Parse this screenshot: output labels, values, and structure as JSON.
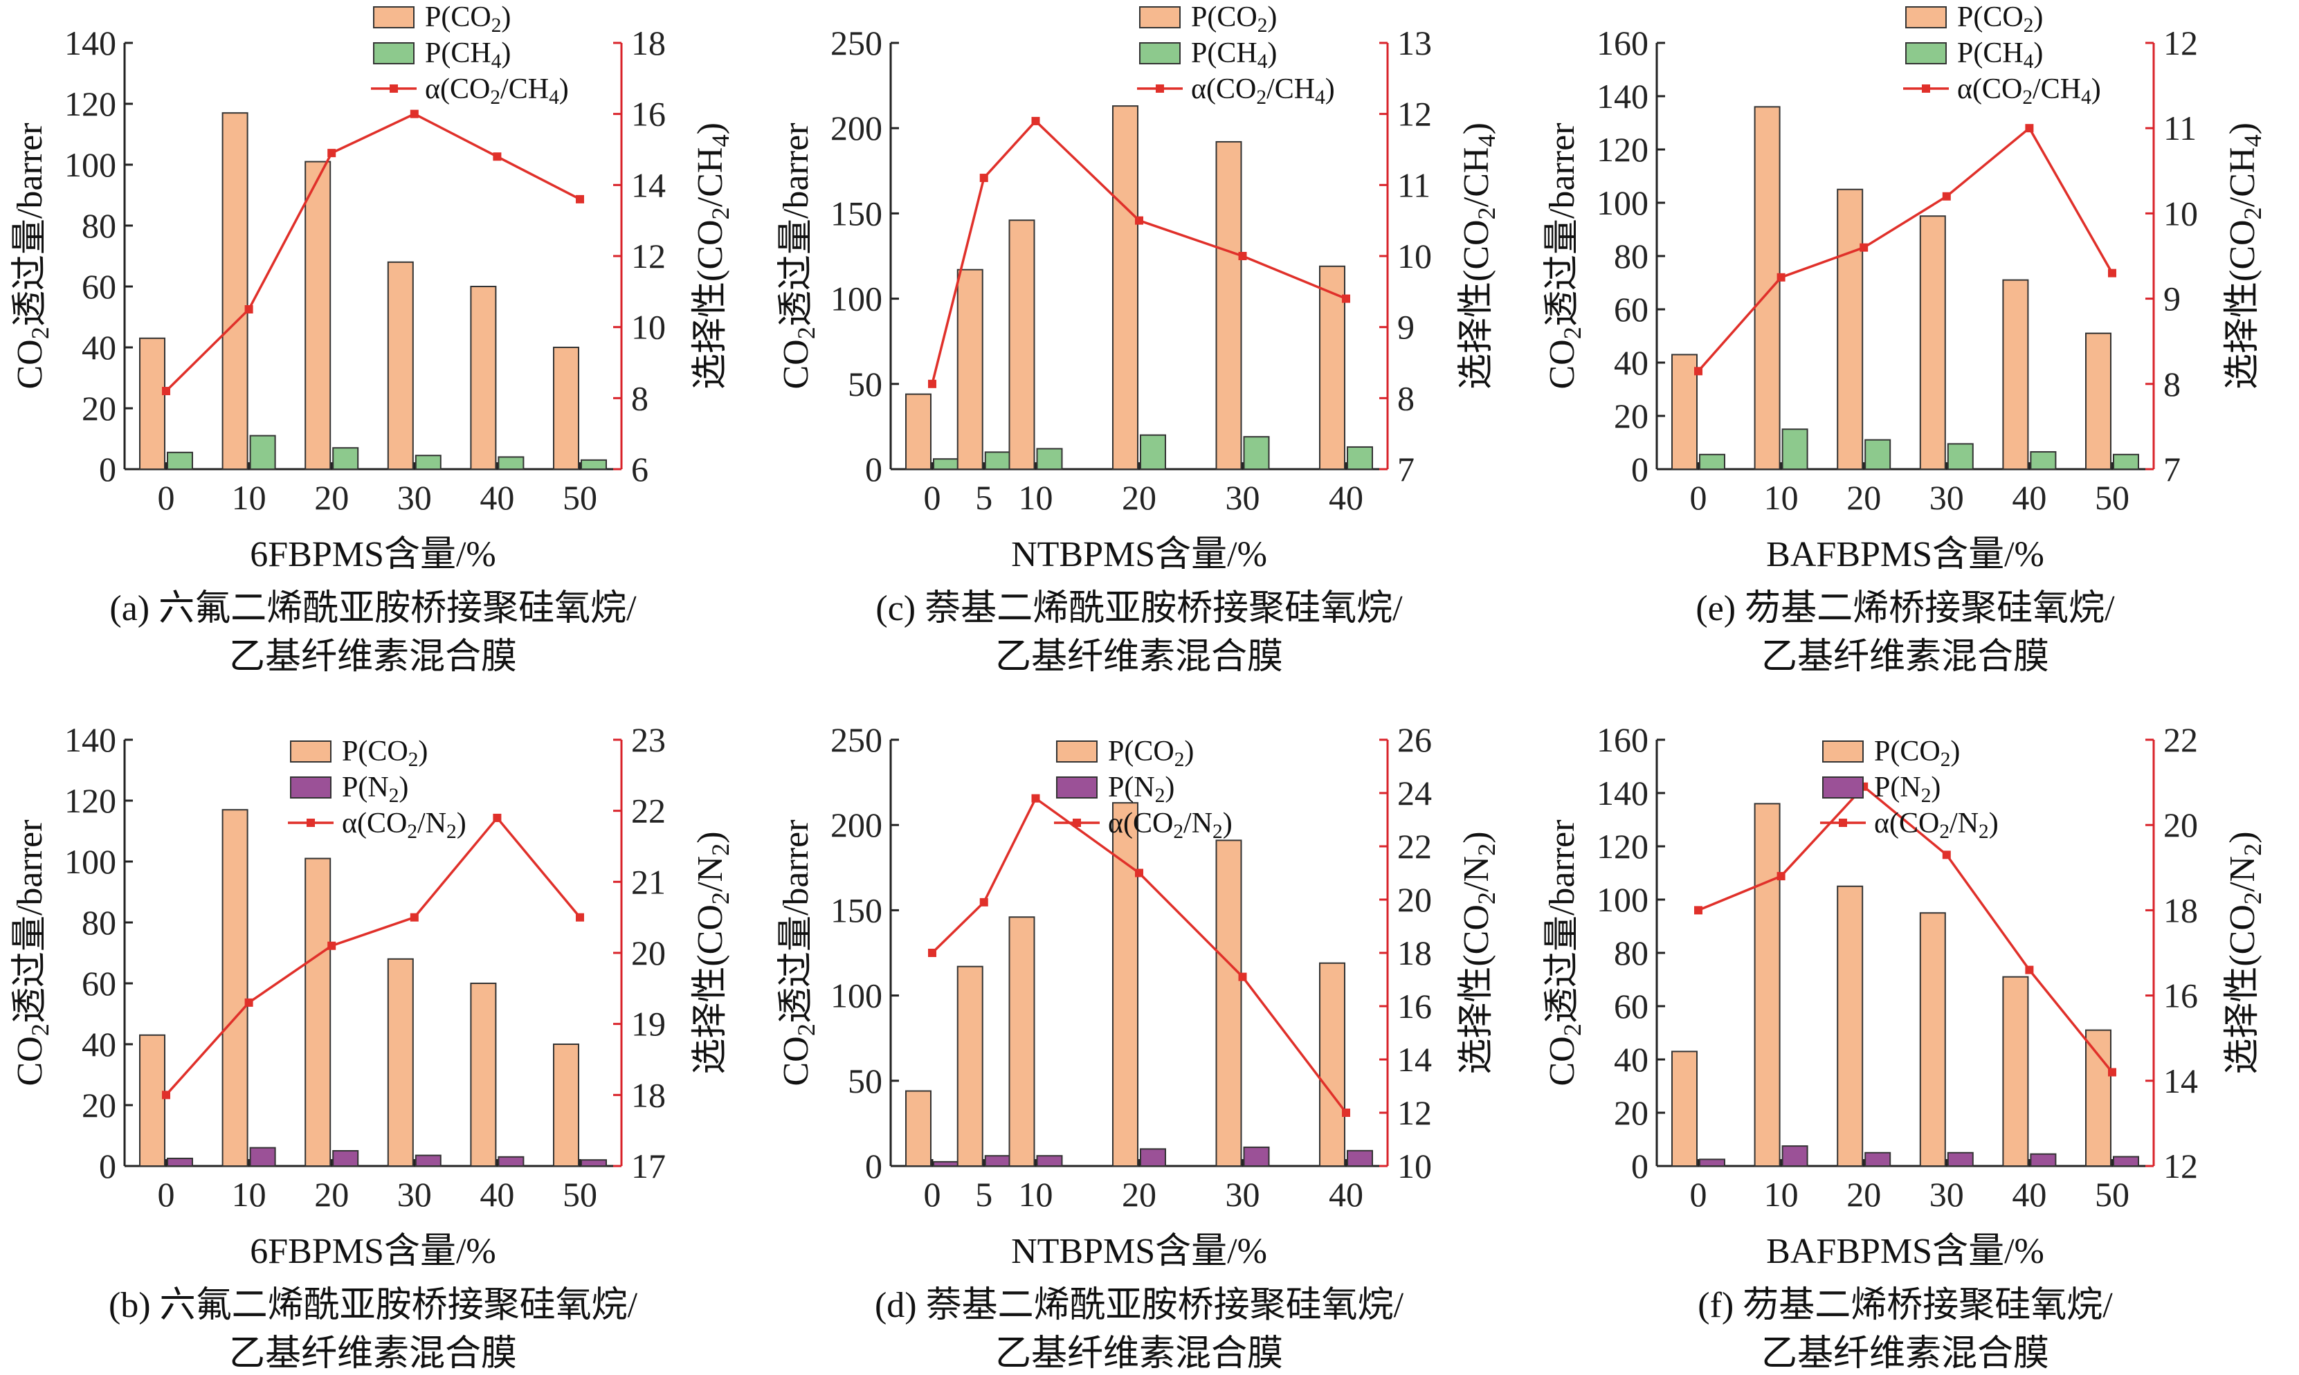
{
  "colors": {
    "co2_bar": "#F6B98F",
    "ch4_bar": "#8DC98D",
    "n2_bar": "#9B5197",
    "selectivity_line": "#E0302A",
    "axis_right": "#D9232A",
    "bar_edge": "#333333"
  },
  "chart_data": [
    {
      "id": "a",
      "type": "bar+line",
      "xlabel": "6FBPMS含量/%",
      "ylabel_left": "CO2透过量/barrer",
      "ylabel_right": "选择性(CO2/CH4)",
      "caption_line1": "(a) 六氟二烯酰亚胺桥接聚硅氧烷/",
      "caption_line2": "乙基纤维素混合膜",
      "categories": [
        0,
        10,
        20,
        30,
        40,
        50
      ],
      "ylim_left": [
        0,
        140
      ],
      "yticks_left": [
        0,
        20,
        40,
        60,
        80,
        100,
        120,
        140
      ],
      "ylim_right": [
        6,
        18
      ],
      "yticks_right": [
        6,
        8,
        10,
        12,
        14,
        16,
        18
      ],
      "legend": [
        "P(CO2)",
        "P(CH4)",
        "α(CO2/CH4)"
      ],
      "series": [
        {
          "name": "P(CO2)",
          "kind": "bar",
          "color_key": "co2_bar",
          "values": [
            43,
            117,
            101,
            68,
            60,
            40
          ]
        },
        {
          "name": "P(CH4)",
          "kind": "bar",
          "color_key": "ch4_bar",
          "values": [
            5.5,
            11,
            7,
            4.5,
            4,
            3
          ]
        },
        {
          "name": "α(CO2/CH4)",
          "kind": "line",
          "axis": "right",
          "values": [
            8.2,
            10.5,
            14.9,
            16.0,
            14.8,
            13.6
          ]
        }
      ]
    },
    {
      "id": "c",
      "type": "bar+line",
      "xlabel": "NTBPMS含量/%",
      "ylabel_left": "CO2透过量/barrer",
      "ylabel_right": "选择性(CO2/CH4)",
      "caption_line1": "(c) 萘基二烯酰亚胺桥接聚硅氧烷/",
      "caption_line2": "乙基纤维素混合膜",
      "categories": [
        0,
        5,
        10,
        20,
        30,
        40
      ],
      "ylim_left": [
        0,
        250
      ],
      "yticks_left": [
        0,
        50,
        100,
        150,
        200,
        250
      ],
      "ylim_right": [
        7,
        13
      ],
      "yticks_right": [
        7,
        8,
        9,
        10,
        11,
        12,
        13
      ],
      "legend": [
        "P(CO2)",
        "P(CH4)",
        "α(CO2/CH4)"
      ],
      "series": [
        {
          "name": "P(CO2)",
          "kind": "bar",
          "color_key": "co2_bar",
          "values": [
            44,
            117,
            146,
            213,
            192,
            119
          ]
        },
        {
          "name": "P(CH4)",
          "kind": "bar",
          "color_key": "ch4_bar",
          "values": [
            6,
            10,
            12,
            20,
            19,
            13
          ]
        },
        {
          "name": "α(CO2/CH4)",
          "kind": "line",
          "axis": "right",
          "values": [
            8.2,
            11.1,
            11.9,
            10.5,
            10.0,
            9.4
          ]
        }
      ]
    },
    {
      "id": "e",
      "type": "bar+line",
      "xlabel": "BAFBPMS含量/%",
      "ylabel_left": "CO2透过量/barrer",
      "ylabel_right": "选择性(CO2/CH4)",
      "caption_line1": "(e) 芴基二烯桥接聚硅氧烷/",
      "caption_line2": "乙基纤维素混合膜",
      "categories": [
        0,
        10,
        20,
        30,
        40,
        50
      ],
      "ylim_left": [
        0,
        160
      ],
      "yticks_left": [
        0,
        20,
        40,
        60,
        80,
        100,
        120,
        140,
        160
      ],
      "ylim_right": [
        7,
        12
      ],
      "yticks_right": [
        7,
        8,
        9,
        10,
        11,
        12
      ],
      "legend": [
        "P(CO2)",
        "P(CH4)",
        "α(CO2/CH4)"
      ],
      "series": [
        {
          "name": "P(CO2)",
          "kind": "bar",
          "color_key": "co2_bar",
          "values": [
            43,
            136,
            105,
            95,
            71,
            51
          ]
        },
        {
          "name": "P(CH4)",
          "kind": "bar",
          "color_key": "ch4_bar",
          "values": [
            5.5,
            15,
            11,
            9.5,
            6.5,
            5.5
          ]
        },
        {
          "name": "α(CO2/CH4)",
          "kind": "line",
          "axis": "right",
          "values": [
            8.15,
            9.25,
            9.6,
            10.2,
            11.0,
            9.3
          ]
        }
      ]
    },
    {
      "id": "b",
      "type": "bar+line",
      "xlabel": "6FBPMS含量/%",
      "ylabel_left": "CO2透过量/barrer",
      "ylabel_right": "选择性(CO2/N2)",
      "caption_line1": "(b) 六氟二烯酰亚胺桥接聚硅氧烷/",
      "caption_line2": "乙基纤维素混合膜",
      "categories": [
        0,
        10,
        20,
        30,
        40,
        50
      ],
      "ylim_left": [
        0,
        140
      ],
      "yticks_left": [
        0,
        20,
        40,
        60,
        80,
        100,
        120,
        140
      ],
      "ylim_right": [
        17,
        23
      ],
      "yticks_right": [
        17,
        18,
        19,
        20,
        21,
        22,
        23
      ],
      "legend": [
        "P(CO2)",
        "P(N2)",
        "α(CO2/N2)"
      ],
      "series": [
        {
          "name": "P(CO2)",
          "kind": "bar",
          "color_key": "co2_bar",
          "values": [
            43,
            117,
            101,
            68,
            60,
            40
          ]
        },
        {
          "name": "P(N2)",
          "kind": "bar",
          "color_key": "n2_bar",
          "values": [
            2.5,
            6,
            5,
            3.5,
            3,
            2
          ]
        },
        {
          "name": "α(CO2/N2)",
          "kind": "line",
          "axis": "right",
          "values": [
            18.0,
            19.3,
            20.1,
            20.5,
            21.9,
            20.5
          ]
        }
      ]
    },
    {
      "id": "d",
      "type": "bar+line",
      "xlabel": "NTBPMS含量/%",
      "ylabel_left": "CO2透过量/barrer",
      "ylabel_right": "选择性(CO2/N2)",
      "caption_line1": "(d) 萘基二烯酰亚胺桥接聚硅氧烷/",
      "caption_line2": "乙基纤维素混合膜",
      "categories": [
        0,
        5,
        10,
        20,
        30,
        40
      ],
      "ylim_left": [
        0,
        250
      ],
      "yticks_left": [
        0,
        50,
        100,
        150,
        200,
        250
      ],
      "ylim_right": [
        10,
        26
      ],
      "yticks_right": [
        10,
        12,
        14,
        16,
        18,
        20,
        22,
        24,
        26
      ],
      "legend": [
        "P(CO2)",
        "P(N2)",
        "α(CO2/N2)"
      ],
      "series": [
        {
          "name": "P(CO2)",
          "kind": "bar",
          "color_key": "co2_bar",
          "values": [
            44,
            117,
            146,
            213,
            191,
            119
          ]
        },
        {
          "name": "P(N2)",
          "kind": "bar",
          "color_key": "n2_bar",
          "values": [
            2.5,
            6,
            6,
            10,
            11,
            9
          ]
        },
        {
          "name": "α(CO2/N2)",
          "kind": "line",
          "axis": "right",
          "values": [
            18.0,
            19.9,
            23.8,
            21.0,
            17.1,
            12.0
          ]
        }
      ]
    },
    {
      "id": "f",
      "type": "bar+line",
      "xlabel": "BAFBPMS含量/%",
      "ylabel_left": "CO2透过量/barrer",
      "ylabel_right": "选择性(CO2/N2)",
      "caption_line1": "(f) 芴基二烯桥接聚硅氧烷/",
      "caption_line2": "乙基纤维素混合膜",
      "categories": [
        0,
        10,
        20,
        30,
        40,
        50
      ],
      "ylim_left": [
        0,
        160
      ],
      "yticks_left": [
        0,
        20,
        40,
        60,
        80,
        100,
        120,
        140,
        160
      ],
      "ylim_right": [
        12,
        22
      ],
      "yticks_right": [
        12,
        14,
        16,
        18,
        20,
        22
      ],
      "legend": [
        "P(CO2)",
        "P(N2)",
        "α(CO2/N2)"
      ],
      "series": [
        {
          "name": "P(CO2)",
          "kind": "bar",
          "color_key": "co2_bar",
          "values": [
            43,
            136,
            105,
            95,
            71,
            51
          ]
        },
        {
          "name": "P(N2)",
          "kind": "bar",
          "color_key": "n2_bar",
          "values": [
            2.5,
            7.5,
            5,
            5,
            4.5,
            3.5
          ]
        },
        {
          "name": "α(CO2/N2)",
          "kind": "line",
          "axis": "right",
          "values": [
            18.0,
            18.8,
            20.9,
            19.3,
            16.6,
            14.2
          ]
        }
      ]
    }
  ]
}
